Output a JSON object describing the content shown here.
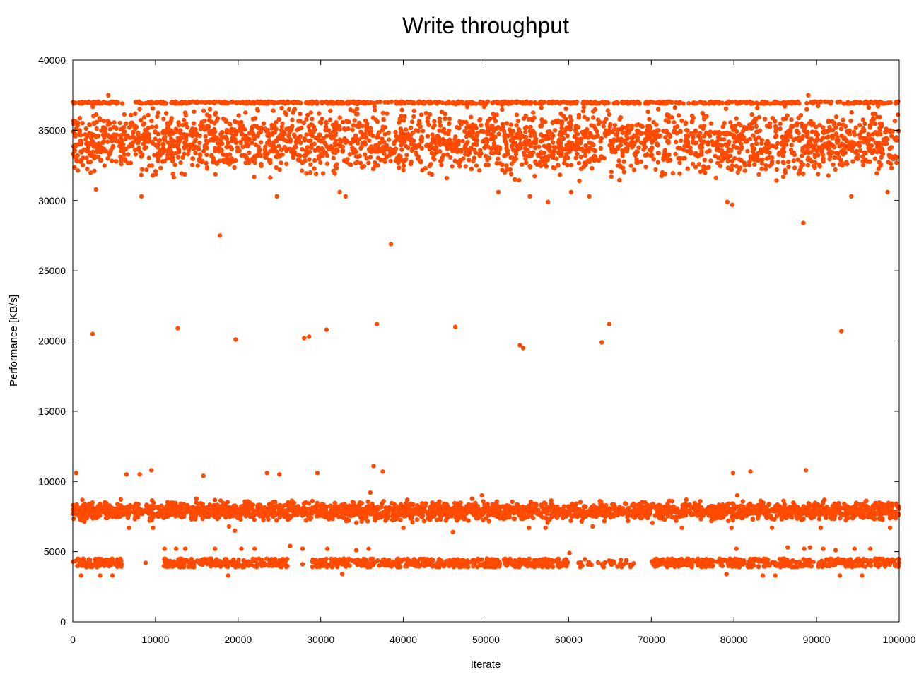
{
  "chart_data": {
    "type": "scatter",
    "title": "Write throughput",
    "xlabel": "Iterate",
    "ylabel": "Performance [KB/s]",
    "xlim": [
      0,
      100000
    ],
    "ylim": [
      0,
      40000
    ],
    "x_ticks": [
      0,
      10000,
      20000,
      30000,
      40000,
      50000,
      60000,
      70000,
      80000,
      90000,
      100000
    ],
    "y_ticks": [
      0,
      5000,
      10000,
      15000,
      20000,
      25000,
      30000,
      35000,
      40000
    ],
    "grid": false,
    "marker_color": "#ff4a00",
    "series": [
      {
        "bands": [
          {
            "y_min": 31000,
            "y_max": 37300,
            "x_min": 0,
            "x_max": 100000,
            "density": "dense"
          },
          {
            "y_min": 36900,
            "y_max": 37050,
            "x_min": 0,
            "x_max": 100000,
            "density": "line"
          },
          {
            "y_min": 7000,
            "y_max": 8800,
            "x_min": 0,
            "x_max": 100000,
            "density": "dense"
          },
          {
            "y_min": 3900,
            "y_max": 4500,
            "x_min": 0,
            "x_max": 6000,
            "density": "medium"
          },
          {
            "y_min": 3900,
            "y_max": 4500,
            "x_min": 11000,
            "x_max": 26000,
            "density": "medium"
          },
          {
            "y_min": 3900,
            "y_max": 4500,
            "x_min": 29000,
            "x_max": 60000,
            "density": "medium"
          },
          {
            "y_min": 3900,
            "y_max": 4500,
            "x_min": 61000,
            "x_max": 68000,
            "density": "sparse"
          },
          {
            "y_min": 3900,
            "y_max": 4500,
            "x_min": 70000,
            "x_max": 100000,
            "density": "medium"
          }
        ],
        "points": [
          [
            400,
            10600
          ],
          [
            2400,
            20500
          ],
          [
            2800,
            30800
          ],
          [
            4300,
            37500
          ],
          [
            6500,
            10500
          ],
          [
            8100,
            10500
          ],
          [
            8300,
            30300
          ],
          [
            9500,
            10800
          ],
          [
            12700,
            20900
          ],
          [
            15800,
            10400
          ],
          [
            17800,
            27500
          ],
          [
            19700,
            20100
          ],
          [
            23500,
            10600
          ],
          [
            24700,
            30300
          ],
          [
            25000,
            10500
          ],
          [
            28000,
            20200
          ],
          [
            28600,
            20300
          ],
          [
            29600,
            10600
          ],
          [
            30700,
            20800
          ],
          [
            32300,
            30600
          ],
          [
            33000,
            30300
          ],
          [
            36400,
            11100
          ],
          [
            36800,
            21200
          ],
          [
            37500,
            10700
          ],
          [
            38500,
            26900
          ],
          [
            46300,
            21000
          ],
          [
            51500,
            30600
          ],
          [
            54100,
            19700
          ],
          [
            54500,
            19500
          ],
          [
            55300,
            30300
          ],
          [
            57500,
            29900
          ],
          [
            60300,
            30600
          ],
          [
            62500,
            30300
          ],
          [
            64000,
            19900
          ],
          [
            64900,
            21200
          ],
          [
            79200,
            29900
          ],
          [
            79800,
            29700
          ],
          [
            79900,
            10600
          ],
          [
            80400,
            9000
          ],
          [
            82000,
            10700
          ],
          [
            88400,
            28400
          ],
          [
            88700,
            10800
          ],
          [
            89000,
            37500
          ],
          [
            93000,
            20700
          ],
          [
            94200,
            30300
          ],
          [
            98600,
            30600
          ],
          [
            36000,
            9200
          ],
          [
            49500,
            9000
          ],
          [
            1000,
            3300
          ],
          [
            3300,
            3300
          ],
          [
            4800,
            3300
          ],
          [
            18800,
            3300
          ],
          [
            32600,
            3400
          ],
          [
            79100,
            3400
          ],
          [
            83500,
            3300
          ],
          [
            85000,
            3300
          ],
          [
            92800,
            3300
          ],
          [
            95500,
            3300
          ],
          [
            11100,
            5200
          ],
          [
            12500,
            5200
          ],
          [
            13600,
            5200
          ],
          [
            17200,
            5200
          ],
          [
            20400,
            5200
          ],
          [
            22000,
            5200
          ],
          [
            26300,
            5400
          ],
          [
            27800,
            5200
          ],
          [
            30800,
            5200
          ],
          [
            34300,
            5100
          ],
          [
            35800,
            5200
          ],
          [
            60100,
            4900
          ],
          [
            80300,
            5200
          ],
          [
            86500,
            5300
          ],
          [
            88500,
            5200
          ],
          [
            89200,
            5300
          ],
          [
            90800,
            5200
          ],
          [
            92300,
            5100
          ],
          [
            94600,
            5200
          ],
          [
            96500,
            5200
          ],
          [
            8800,
            4200
          ],
          [
            27800,
            4100
          ],
          [
            6800,
            6700
          ],
          [
            9700,
            6700
          ],
          [
            18900,
            6800
          ],
          [
            19600,
            6500
          ],
          [
            46000,
            6400
          ],
          [
            55200,
            6700
          ],
          [
            57200,
            6700
          ],
          [
            62900,
            6800
          ],
          [
            73700,
            6700
          ],
          [
            79700,
            6700
          ],
          [
            84600,
            6700
          ],
          [
            90500,
            6700
          ],
          [
            98900,
            6700
          ],
          [
            40000,
            6700
          ]
        ]
      }
    ]
  }
}
